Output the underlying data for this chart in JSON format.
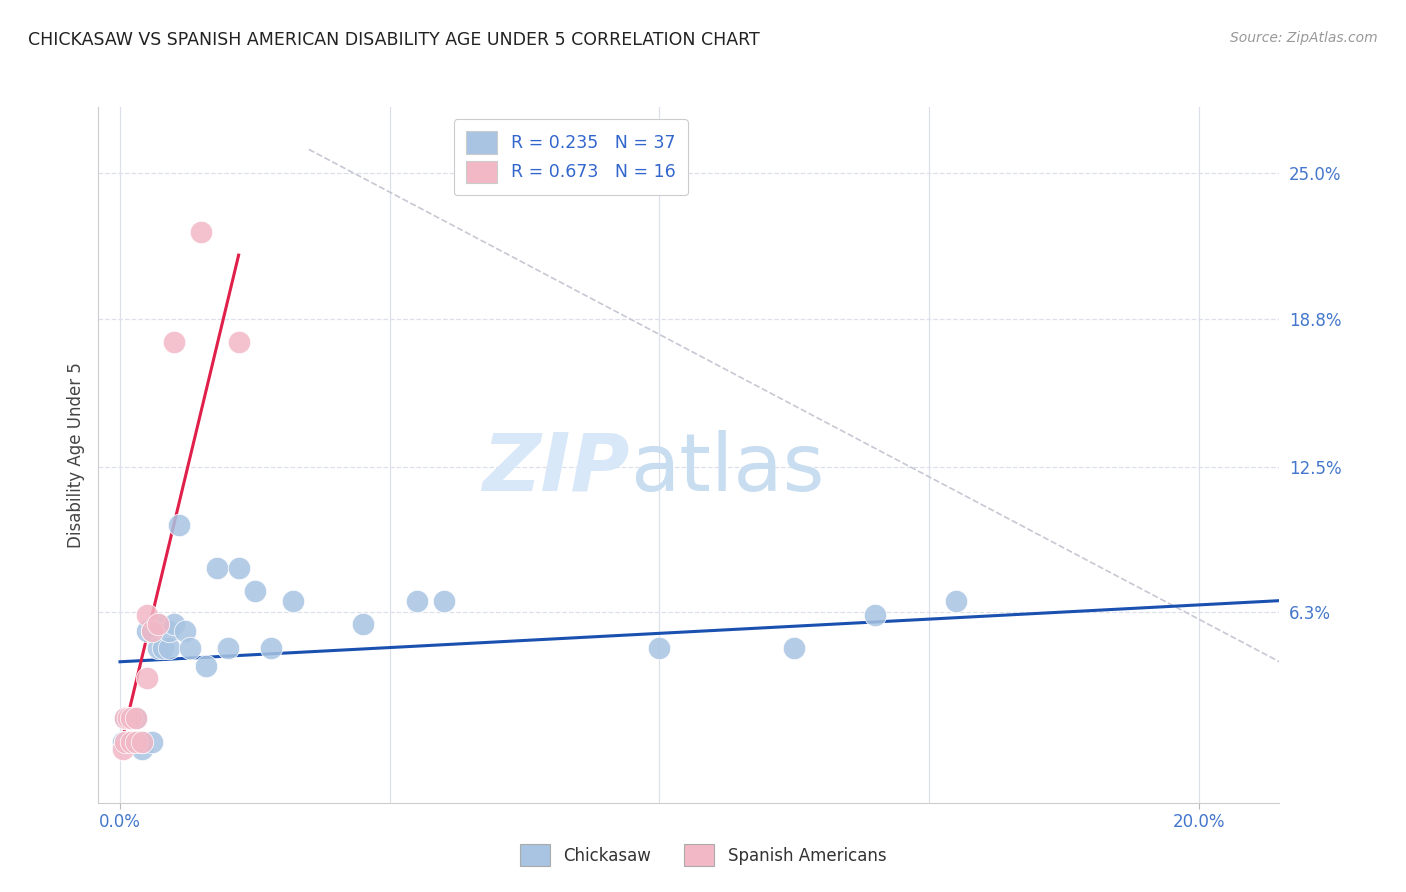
{
  "title": "CHICKASAW VS SPANISH AMERICAN DISABILITY AGE UNDER 5 CORRELATION CHART",
  "source": "Source: ZipAtlas.com",
  "ylabel": "Disability Age Under 5",
  "ylabel_ticks_right": [
    "25.0%",
    "18.8%",
    "12.5%",
    "6.3%"
  ],
  "ylabel_tick_vals": [
    0.25,
    0.188,
    0.125,
    0.063
  ],
  "xlabel_ticks": [
    "0.0%",
    "20.0%"
  ],
  "xlabel_tick_vals": [
    0.0,
    0.2
  ],
  "xlim": [
    -0.004,
    0.215
  ],
  "ylim": [
    -0.018,
    0.278
  ],
  "chickasaw_color": "#a8c4e2",
  "spanish_color": "#f2b8c6",
  "trendline_blue": "#1a50b0",
  "trendline_pink": "#e0204a",
  "trendline_dashed_color": "#c8c8d4",
  "chickasaw_points_x": [
    0.0005,
    0.001,
    0.001,
    0.0015,
    0.002,
    0.002,
    0.003,
    0.003,
    0.003,
    0.004,
    0.004,
    0.005,
    0.006,
    0.006,
    0.007,
    0.007,
    0.008,
    0.009,
    0.009,
    0.01,
    0.011,
    0.012,
    0.013,
    0.016,
    0.018,
    0.02,
    0.022,
    0.025,
    0.028,
    0.032,
    0.045,
    0.055,
    0.06,
    0.1,
    0.125,
    0.14,
    0.155
  ],
  "chickasaw_points_y": [
    0.008,
    0.008,
    0.018,
    0.008,
    0.018,
    0.008,
    0.008,
    0.008,
    0.018,
    0.005,
    0.008,
    0.055,
    0.008,
    0.055,
    0.048,
    0.058,
    0.048,
    0.048,
    0.055,
    0.058,
    0.1,
    0.055,
    0.048,
    0.04,
    0.082,
    0.048,
    0.082,
    0.072,
    0.048,
    0.068,
    0.058,
    0.068,
    0.068,
    0.048,
    0.048,
    0.062,
    0.068
  ],
  "spanish_points_x": [
    0.0005,
    0.001,
    0.001,
    0.0015,
    0.002,
    0.002,
    0.003,
    0.003,
    0.004,
    0.005,
    0.005,
    0.006,
    0.007,
    0.01,
    0.015,
    0.022
  ],
  "spanish_points_y": [
    0.005,
    0.008,
    0.018,
    0.018,
    0.008,
    0.018,
    0.008,
    0.018,
    0.008,
    0.035,
    0.062,
    0.055,
    0.058,
    0.178,
    0.225,
    0.178
  ],
  "blue_trend_x": [
    0.0,
    0.215
  ],
  "blue_trend_y": [
    0.042,
    0.068
  ],
  "pink_trend_x": [
    0.0,
    0.022
  ],
  "pink_trend_y": [
    0.005,
    0.215
  ],
  "dashed_trend_x": [
    0.035,
    0.215
  ],
  "dashed_trend_y": [
    0.26,
    0.042
  ],
  "watermark_zip": "ZIP",
  "watermark_atlas": "atlas",
  "background_color": "#ffffff",
  "grid_color": "#dde0ea",
  "grid_h_style": "--",
  "grid_v_style": "-"
}
